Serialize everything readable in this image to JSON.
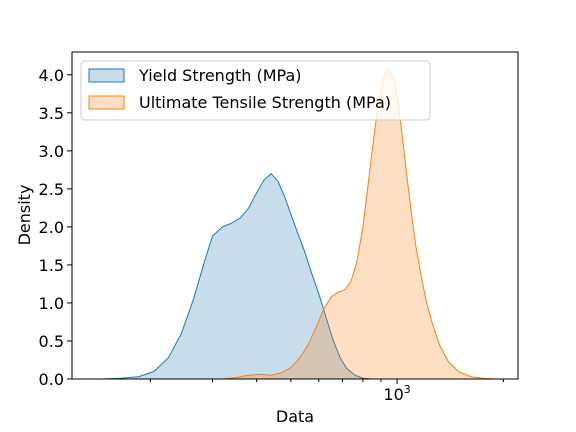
{
  "chart_data": {
    "type": "area",
    "title": "",
    "xlabel": "Data",
    "ylabel": "Density",
    "xscale": "log",
    "xlim": [
      120,
      2200
    ],
    "ylim": [
      0,
      4.3
    ],
    "x_tick_labels": [
      {
        "value": 1000,
        "base": "10",
        "exp": "3"
      }
    ],
    "y_ticks": [
      0.0,
      0.5,
      1.0,
      1.5,
      2.0,
      2.5,
      3.0,
      3.5,
      4.0
    ],
    "y_tick_labels": [
      "0.0",
      "0.5",
      "1.0",
      "1.5",
      "2.0",
      "2.5",
      "3.0",
      "3.5",
      "4.0"
    ],
    "grid": false,
    "legend_position": "upper-left",
    "series": [
      {
        "name": "Yield Strength (MPa)",
        "fill": "#1f77b4",
        "stroke": "#1f77b4",
        "x": [
          145,
          165,
          185,
          205,
          225,
          245,
          265,
          285,
          300,
          320,
          340,
          360,
          380,
          400,
          420,
          440,
          460,
          480,
          500,
          520,
          545,
          570,
          600,
          630,
          660,
          690,
          720,
          760,
          800,
          850
        ],
        "y": [
          0.0,
          0.01,
          0.03,
          0.1,
          0.28,
          0.6,
          1.05,
          1.55,
          1.88,
          2.0,
          2.05,
          2.12,
          2.25,
          2.45,
          2.62,
          2.7,
          2.6,
          2.4,
          2.17,
          1.95,
          1.7,
          1.42,
          1.12,
          0.8,
          0.5,
          0.28,
          0.14,
          0.05,
          0.01,
          0.0
        ]
      },
      {
        "name": "Ultimate Tensile Strength (MPa)",
        "fill": "#ff7f0e",
        "stroke": "#ff7f0e",
        "x": [
          320,
          350,
          380,
          410,
          440,
          470,
          500,
          530,
          560,
          590,
          620,
          650,
          680,
          710,
          740,
          770,
          800,
          830,
          860,
          890,
          920,
          950,
          980,
          1010,
          1040,
          1070,
          1100,
          1130,
          1170,
          1210,
          1260,
          1320,
          1400,
          1500,
          1620,
          1750,
          1900
        ],
        "y": [
          0.0,
          0.02,
          0.05,
          0.06,
          0.05,
          0.08,
          0.15,
          0.28,
          0.45,
          0.68,
          0.92,
          1.08,
          1.14,
          1.17,
          1.28,
          1.55,
          2.0,
          2.6,
          3.2,
          3.7,
          4.0,
          4.08,
          3.95,
          3.6,
          3.1,
          2.6,
          2.15,
          1.75,
          1.35,
          1.02,
          0.72,
          0.44,
          0.22,
          0.09,
          0.03,
          0.01,
          0.0
        ]
      }
    ]
  }
}
